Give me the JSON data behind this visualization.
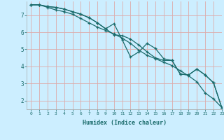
{
  "title": "",
  "xlabel": "Humidex (Indice chaleur)",
  "background_color": "#cceeff",
  "grid_color": "#ddaaaa",
  "line_color": "#1a6b6b",
  "xlim": [
    -0.5,
    23
  ],
  "ylim": [
    1.5,
    7.8
  ],
  "yticks": [
    2,
    3,
    4,
    5,
    6,
    7
  ],
  "xticks": [
    0,
    1,
    2,
    3,
    4,
    5,
    6,
    7,
    8,
    9,
    10,
    11,
    12,
    13,
    14,
    15,
    16,
    17,
    18,
    19,
    20,
    21,
    22,
    23
  ],
  "series": [
    [
      7.6,
      7.6,
      7.45,
      7.3,
      7.2,
      7.05,
      6.8,
      6.55,
      6.3,
      6.1,
      5.9,
      5.65,
      5.35,
      4.95,
      4.65,
      4.45,
      4.25,
      4.05,
      3.75,
      3.45,
      3.1,
      2.45,
      2.1,
      1.6
    ],
    [
      7.6,
      7.6,
      7.5,
      7.45,
      7.35,
      7.2,
      7.05,
      6.85,
      6.55,
      6.2,
      5.85,
      5.8,
      5.6,
      5.25,
      4.85,
      4.5,
      4.35,
      4.35,
      3.55,
      3.5,
      3.85,
      3.5,
      3.05,
      1.6
    ],
    [
      7.6,
      7.6,
      7.5,
      7.45,
      7.35,
      7.2,
      7.05,
      6.85,
      6.55,
      6.2,
      6.5,
      5.55,
      4.55,
      4.85,
      5.35,
      5.05,
      4.45,
      4.35,
      3.55,
      3.5,
      3.85,
      3.5,
      3.05,
      1.6
    ]
  ]
}
